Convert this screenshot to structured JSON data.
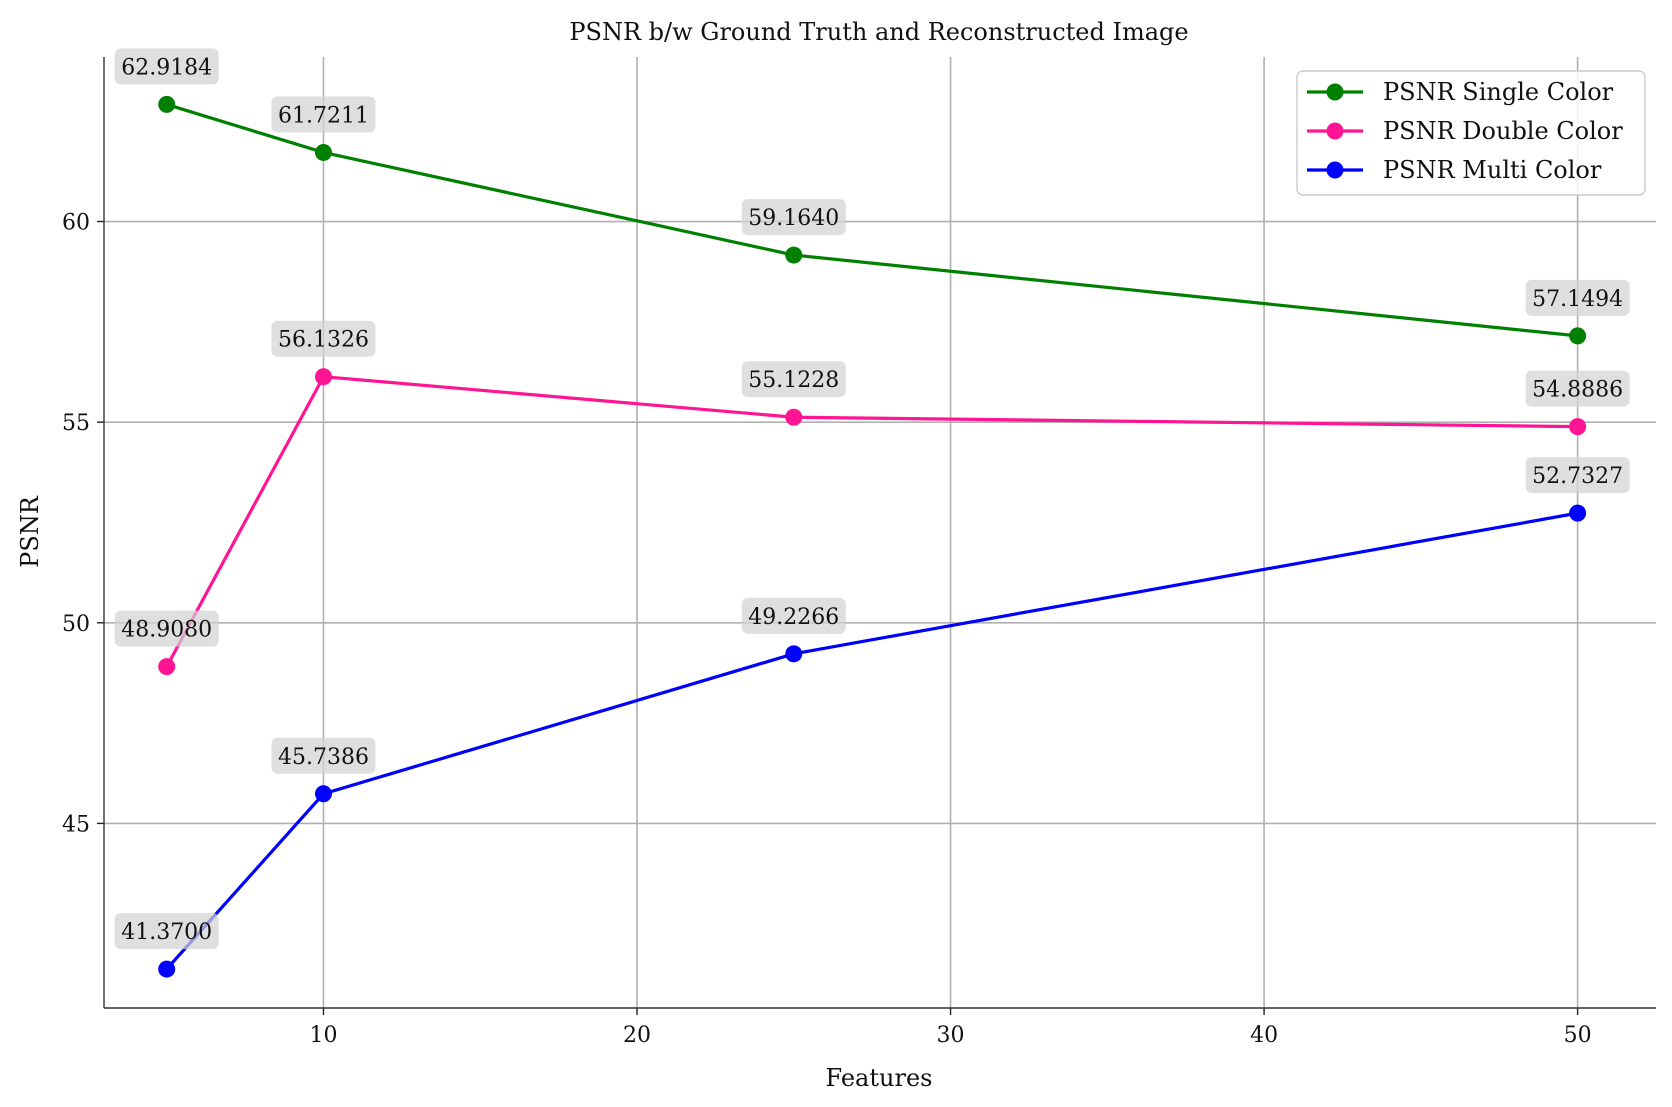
{
  "chart_data": {
    "type": "line",
    "title": "PSNR b/w Ground Truth and Reconstructed Image",
    "xlabel": "Features",
    "ylabel": "PSNR",
    "x": [
      5,
      10,
      25,
      50
    ],
    "xlim": [
      3,
      52.5
    ],
    "ylim": [
      40.4,
      64.1
    ],
    "xticks": [
      10,
      20,
      30,
      40,
      50
    ],
    "yticks": [
      45,
      50,
      55,
      60
    ],
    "grid": true,
    "legend_position": "top-right",
    "series": [
      {
        "name": "PSNR Single Color",
        "color": "#008000",
        "values": [
          62.9184,
          61.7211,
          59.164,
          57.1494
        ],
        "labels": [
          "62.9184",
          "61.7211",
          "59.1640",
          "57.1494"
        ]
      },
      {
        "name": "PSNR Double Color",
        "color": "#ff1493",
        "values": [
          48.908,
          56.1326,
          55.1228,
          54.8886
        ],
        "labels": [
          "48.9080",
          "56.1326",
          "55.1228",
          "54.8886"
        ]
      },
      {
        "name": "PSNR Multi Color",
        "color": "#0000ff",
        "values": [
          41.37,
          45.7386,
          49.2266,
          52.7327
        ],
        "labels": [
          "41.3700",
          "45.7386",
          "49.2266",
          "52.7327"
        ]
      }
    ]
  }
}
